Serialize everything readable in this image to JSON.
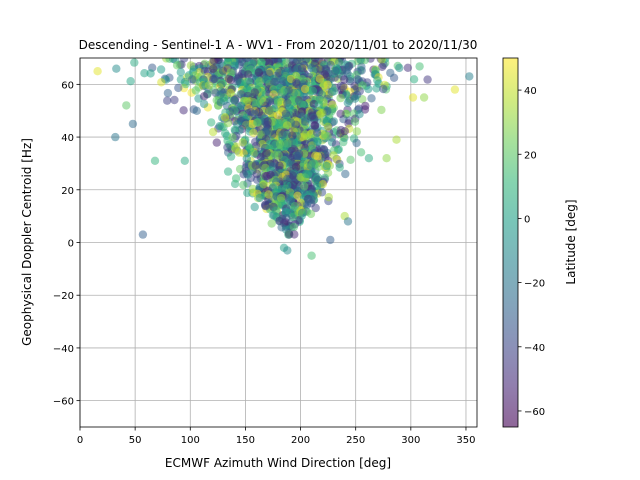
{
  "chart_data": {
    "type": "scatter",
    "title": "Descending - Sentinel-1 A - WV1 - From 2020/11/01 to 2020/11/30",
    "xlabel": "ECMWF Azimuth Wind Direction [deg]",
    "ylabel": "Geophysical Doppler Centroid [Hz]",
    "xlim": [
      0,
      360
    ],
    "ylim": [
      -70,
      70
    ],
    "xticks": [
      0,
      50,
      100,
      150,
      200,
      250,
      300,
      350
    ],
    "yticks": [
      -60,
      -40,
      -20,
      0,
      20,
      40,
      60
    ],
    "grid": true,
    "point_alpha": 0.5,
    "colormap": "viridis",
    "colorbar": {
      "label": "Latitude [deg]",
      "range": [
        -65,
        50
      ],
      "ticks": [
        -60,
        -40,
        -20,
        0,
        20,
        40
      ],
      "colors": [
        "#440154",
        "#482878",
        "#3e4989",
        "#31688e",
        "#26828e",
        "#1f9e89",
        "#35b779",
        "#6ece58",
        "#b5de2b",
        "#fde725"
      ]
    },
    "outliers": [
      {
        "x": 57,
        "y": 3,
        "lat": -30
      },
      {
        "x": 68,
        "y": 31,
        "lat": 10
      },
      {
        "x": 32,
        "y": 40,
        "lat": -20
      },
      {
        "x": 48,
        "y": 45,
        "lat": -25
      },
      {
        "x": 95,
        "y": 31,
        "lat": 5
      },
      {
        "x": 185,
        "y": -2,
        "lat": 0
      },
      {
        "x": 188,
        "y": -3,
        "lat": -10
      },
      {
        "x": 210,
        "y": -5,
        "lat": 15
      },
      {
        "x": 227,
        "y": 1,
        "lat": -30
      },
      {
        "x": 240,
        "y": 10,
        "lat": 35
      },
      {
        "x": 243,
        "y": 8,
        "lat": -20
      },
      {
        "x": 262,
        "y": 32,
        "lat": 5
      },
      {
        "x": 278,
        "y": 32,
        "lat": 30
      },
      {
        "x": 287,
        "y": 39,
        "lat": 35
      },
      {
        "x": 312,
        "y": 55,
        "lat": 30
      },
      {
        "x": 340,
        "y": 58,
        "lat": 45
      },
      {
        "x": 16,
        "y": 65,
        "lat": 45
      },
      {
        "x": 353,
        "y": 63,
        "lat": -15
      },
      {
        "x": 42,
        "y": 52,
        "lat": 20
      },
      {
        "x": 302,
        "y": 55,
        "lat": 45
      }
    ],
    "density_bands": [
      {
        "y": 68,
        "xmin": 3,
        "xmax": 355,
        "count": 180
      },
      {
        "y": 64,
        "xmin": 8,
        "xmax": 350,
        "count": 200
      },
      {
        "y": 60,
        "xmin": 25,
        "xmax": 335,
        "count": 170
      },
      {
        "y": 56,
        "xmin": 45,
        "xmax": 322,
        "count": 150
      },
      {
        "y": 52,
        "xmin": 62,
        "xmax": 305,
        "count": 140
      },
      {
        "y": 48,
        "xmin": 78,
        "xmax": 295,
        "count": 130
      },
      {
        "y": 44,
        "xmin": 88,
        "xmax": 285,
        "count": 125
      },
      {
        "y": 40,
        "xmin": 98,
        "xmax": 275,
        "count": 120
      },
      {
        "y": 36,
        "xmin": 105,
        "xmax": 268,
        "count": 115
      },
      {
        "y": 32,
        "xmin": 112,
        "xmax": 262,
        "count": 110
      },
      {
        "y": 28,
        "xmin": 118,
        "xmax": 257,
        "count": 105
      },
      {
        "y": 24,
        "xmin": 124,
        "xmax": 252,
        "count": 95
      },
      {
        "y": 20,
        "xmin": 132,
        "xmax": 245,
        "count": 80
      },
      {
        "y": 16,
        "xmin": 142,
        "xmax": 238,
        "count": 60
      },
      {
        "y": 12,
        "xmin": 152,
        "xmax": 228,
        "count": 40
      },
      {
        "y": 8,
        "xmin": 165,
        "xmax": 218,
        "count": 20
      },
      {
        "y": 5,
        "xmin": 175,
        "xmax": 205,
        "count": 8
      }
    ]
  }
}
